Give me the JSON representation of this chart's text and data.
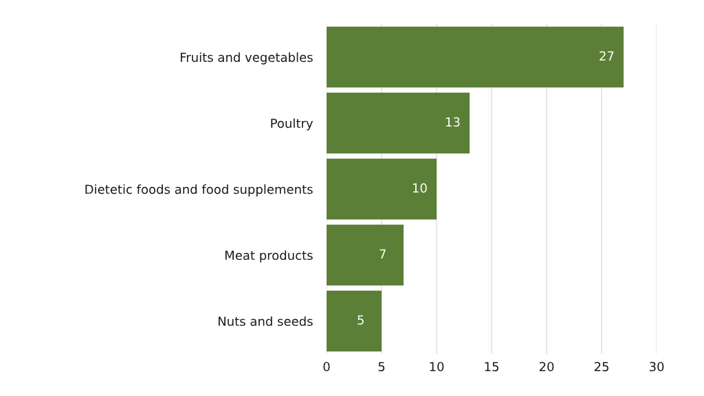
{
  "chart_data": {
    "type": "bar",
    "orientation": "horizontal",
    "categories": [
      "Fruits and vegetables",
      "Poultry",
      "Dietetic foods and food supplements",
      "Meat products",
      "Nuts and seeds"
    ],
    "values": [
      27,
      13,
      10,
      7,
      5
    ],
    "color": "#5b7f36",
    "xlim": [
      0,
      30
    ],
    "xticks": [
      0,
      5,
      10,
      15,
      20,
      25,
      30
    ],
    "grid": "x",
    "data_labels": true
  }
}
